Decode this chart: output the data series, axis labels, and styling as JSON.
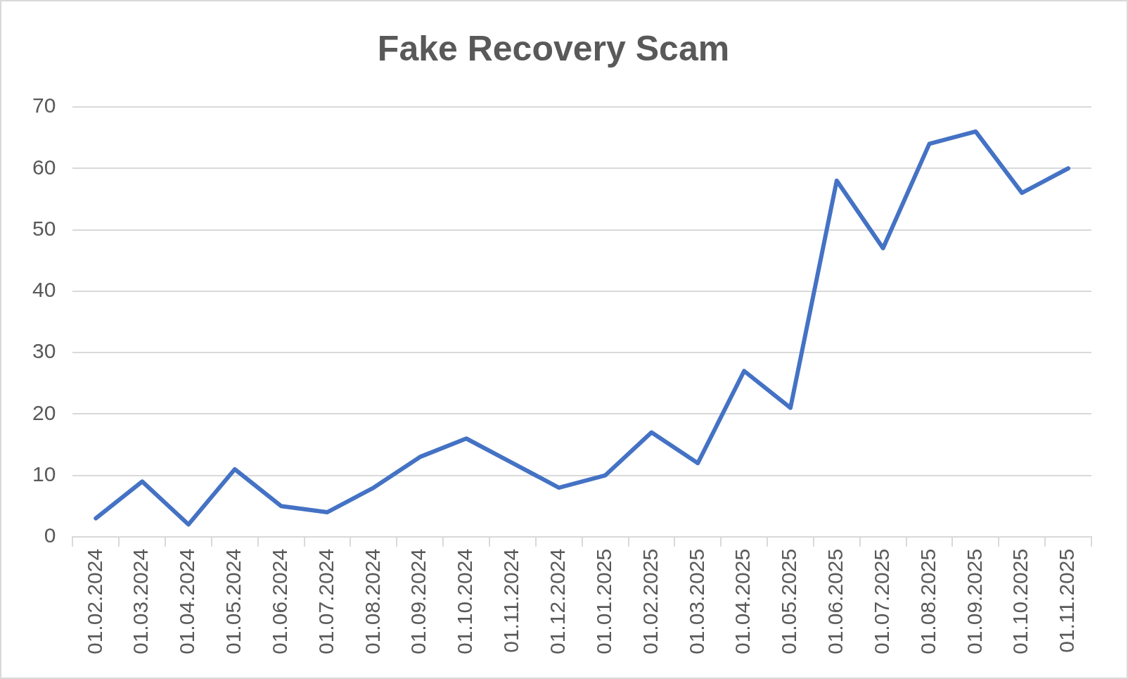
{
  "chart_data": {
    "type": "line",
    "title": "Fake Recovery Scam",
    "categories": [
      "01.02.2024",
      "01.03.2024",
      "01.04.2024",
      "01.05.2024",
      "01.06.2024",
      "01.07.2024",
      "01.08.2024",
      "01.09.2024",
      "01.10.2024",
      "01.11.2024",
      "01.12.2024",
      "01.01.2025",
      "01.02.2025",
      "01.03.2025",
      "01.04.2025",
      "01.05.2025",
      "01.06.2025",
      "01.07.2025",
      "01.08.2025",
      "01.09.2025",
      "01.10.2025",
      "01.11.2025"
    ],
    "series": [
      {
        "color": "#4472c4",
        "values": [
          3,
          9,
          2,
          11,
          5,
          4,
          8,
          13,
          16,
          12,
          8,
          10,
          17,
          12,
          27,
          21,
          58,
          47,
          64,
          66,
          56,
          60
        ]
      }
    ],
    "ylim": [
      0,
      70
    ],
    "yticks": [
      0,
      10,
      20,
      30,
      40,
      50,
      60,
      70
    ],
    "grid": "y",
    "legend": false,
    "marker": "none",
    "line_style": "solid"
  }
}
